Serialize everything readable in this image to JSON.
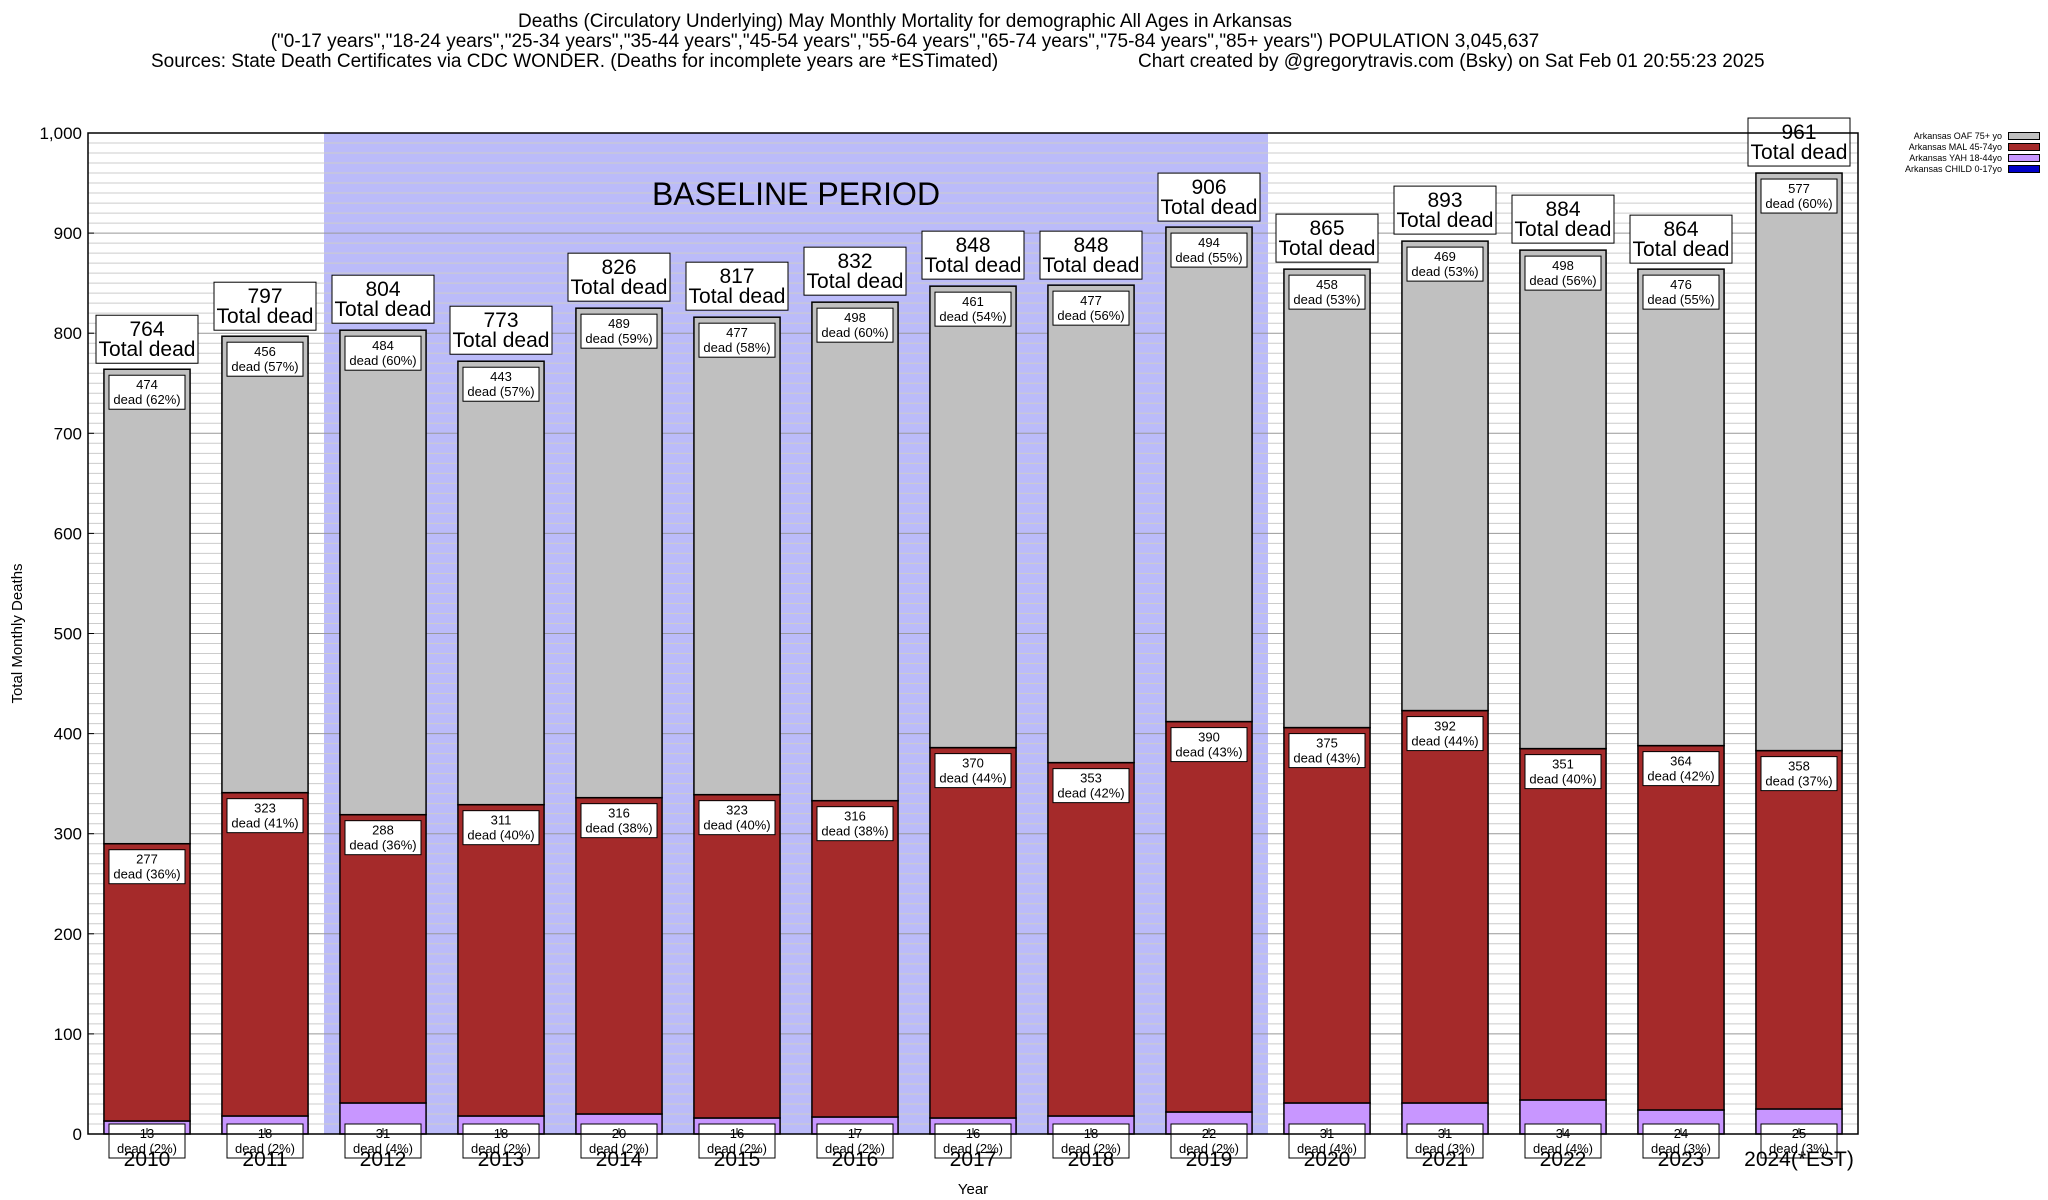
{
  "header": {
    "line1": "Deaths (Circulatory Underlying) May Monthly Mortality for demographic All Ages in Arkansas",
    "line2": "(\"0-17 years\",\"18-24 years\",\"25-34 years\",\"35-44 years\",\"45-54 years\",\"55-64 years\",\"65-74 years\",\"75-84 years\",\"85+ years\") POPULATION 3,045,637",
    "line3_left": "Sources: State Death Certificates via CDC WONDER. (Deaths for incomplete years are *ESTimated)",
    "line3_right": "Chart created by @gregorytravis.com (Bsky) on Sat Feb 01 20:55:23 2025"
  },
  "chart_data": {
    "type": "bar",
    "stacked": true,
    "xlabel": "Year",
    "ylabel": "Total Monthly Deaths",
    "ylim": [
      0,
      1000
    ],
    "yticks": [
      0,
      100,
      200,
      300,
      400,
      500,
      600,
      700,
      800,
      900,
      1000
    ],
    "ytick_labels": [
      "0",
      "100",
      "200",
      "300",
      "400",
      "500",
      "600",
      "700",
      "800",
      "900",
      "1,000"
    ],
    "grid": true,
    "legend_position": "top-right",
    "categories": [
      "2010",
      "2011",
      "2012",
      "2013",
      "2014",
      "2015",
      "2016",
      "2017",
      "2018",
      "2019",
      "2020",
      "2021",
      "2022",
      "2023",
      "2024(*EST)"
    ],
    "totals": [
      764,
      797,
      804,
      773,
      826,
      817,
      832,
      848,
      848,
      906,
      865,
      893,
      884,
      864,
      961
    ],
    "total_label": "Total dead",
    "segment_label_word": "dead",
    "baseline": {
      "label": "BASELINE PERIOD",
      "start": "2012",
      "end": "2019",
      "color": "#bbbbf9"
    },
    "series": [
      {
        "name": "Arkansas CHILD 0-17yo",
        "color": "#0000c8",
        "values": [
          0,
          0,
          0,
          0,
          0,
          0,
          0,
          0,
          0,
          0,
          0,
          0,
          0,
          0,
          0
        ],
        "pct": [
          "",
          "",
          "",
          "",
          "",
          "",
          "",
          "",
          "",
          "",
          "",
          "",
          "",
          "",
          ""
        ]
      },
      {
        "name": "Arkansas YAH 18-44yo",
        "color": "#c896ff",
        "values": [
          13,
          18,
          31,
          18,
          20,
          16,
          17,
          16,
          18,
          22,
          31,
          31,
          34,
          24,
          25
        ],
        "pct": [
          "2%",
          "2%",
          "4%",
          "2%",
          "2%",
          "2%",
          "2%",
          "2%",
          "2%",
          "2%",
          "4%",
          "3%",
          "4%",
          "3%",
          "3%"
        ]
      },
      {
        "name": "Arkansas MAL 45-74yo",
        "color": "#a52a2a",
        "values": [
          277,
          323,
          288,
          311,
          316,
          323,
          316,
          370,
          353,
          390,
          375,
          392,
          351,
          364,
          358
        ],
        "pct": [
          "36%",
          "41%",
          "36%",
          "40%",
          "38%",
          "40%",
          "38%",
          "44%",
          "42%",
          "43%",
          "43%",
          "44%",
          "40%",
          "42%",
          "37%"
        ]
      },
      {
        "name": "Arkansas OAF 75+ yo",
        "color": "#c0c0c0",
        "values": [
          474,
          456,
          484,
          443,
          489,
          477,
          498,
          461,
          477,
          494,
          458,
          469,
          498,
          476,
          577
        ],
        "pct": [
          "62%",
          "57%",
          "60%",
          "57%",
          "59%",
          "58%",
          "60%",
          "54%",
          "56%",
          "55%",
          "53%",
          "53%",
          "56%",
          "55%",
          "60%"
        ]
      }
    ]
  }
}
